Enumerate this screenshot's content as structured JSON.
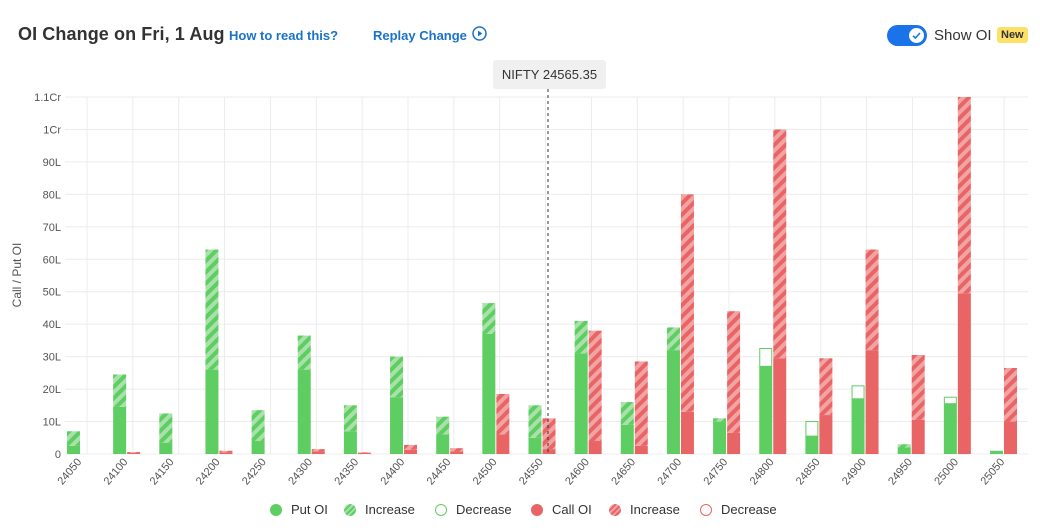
{
  "header": {
    "title": "OI Change on Fri, 1 Aug",
    "how_to_read": "How to read this?",
    "replay": "Replay Change",
    "show_oi_label": "Show OI",
    "new_badge": "New",
    "toggle_on": true
  },
  "tooltip": "NIFTY 24565.35",
  "colors": {
    "put": "#5ecd62",
    "put_increase": "#a8e2aa",
    "call": "#e96565",
    "call_increase": "#f2a4a4",
    "grid": "#ececec",
    "toggle": "#1a73e8"
  },
  "chart_data": {
    "type": "bar",
    "ylabel": "Call / Put OI",
    "y_ticks": [
      "0",
      "10L",
      "20L",
      "30L",
      "40L",
      "50L",
      "60L",
      "70L",
      "80L",
      "90L",
      "1Cr",
      "1.1Cr"
    ],
    "ylim": [
      0,
      110
    ],
    "unit": "L",
    "spot": 24565.35,
    "categories": [
      "24050",
      "24100",
      "24150",
      "24200",
      "24250",
      "24300",
      "24350",
      "24400",
      "24450",
      "24500",
      "24550",
      "24600",
      "24650",
      "24700",
      "24750",
      "24800",
      "24850",
      "24900",
      "24950",
      "25000",
      "25050"
    ],
    "series": [
      {
        "name": "Put OI",
        "values": [
          2.5,
          14.5,
          3.5,
          26,
          4,
          26,
          7,
          17.5,
          6,
          37,
          5,
          31,
          9,
          32,
          10,
          27,
          5.5,
          17,
          2,
          15.5,
          1
        ]
      },
      {
        "name": "Increase",
        "values": [
          4.5,
          10,
          9,
          37,
          9.5,
          10.5,
          8,
          12.5,
          5.5,
          9.5,
          10,
          10,
          7,
          7,
          1,
          0,
          0,
          0,
          1,
          0,
          0
        ]
      },
      {
        "name": "Decrease",
        "values": [
          0,
          0,
          0,
          0,
          0,
          0,
          0,
          0,
          0,
          0,
          0,
          0,
          0,
          0,
          0,
          5.5,
          4.5,
          4,
          0,
          2,
          0
        ]
      },
      {
        "name": "Call OI",
        "values": [
          0,
          0.3,
          0,
          0.5,
          0,
          0.8,
          0.3,
          1.3,
          0.8,
          6,
          1.5,
          4,
          2.5,
          13,
          6.5,
          29.5,
          12,
          32,
          10.5,
          49.5,
          10
        ]
      },
      {
        "name": "Increase",
        "values": [
          0,
          0.3,
          0,
          0.5,
          0,
          0.7,
          0.2,
          1.5,
          1,
          12.5,
          9.5,
          34,
          26,
          67,
          37.5,
          70.5,
          17.5,
          31,
          20,
          60.5,
          16.5
        ]
      },
      {
        "name": "Decrease",
        "values": [
          0,
          0,
          0,
          0,
          0,
          0,
          0,
          0,
          0,
          0,
          0,
          0,
          0,
          0,
          0,
          0,
          0,
          0,
          0,
          0,
          0
        ]
      }
    ],
    "grid": true,
    "legend": "bottom-center"
  },
  "legend": [
    {
      "label": "Put OI",
      "kind": "put-solid"
    },
    {
      "label": "Increase",
      "kind": "put-increase"
    },
    {
      "label": "Decrease",
      "kind": "put-decrease"
    },
    {
      "label": "Call OI",
      "kind": "call-solid"
    },
    {
      "label": "Increase",
      "kind": "call-increase"
    },
    {
      "label": "Decrease",
      "kind": "call-decrease"
    }
  ]
}
